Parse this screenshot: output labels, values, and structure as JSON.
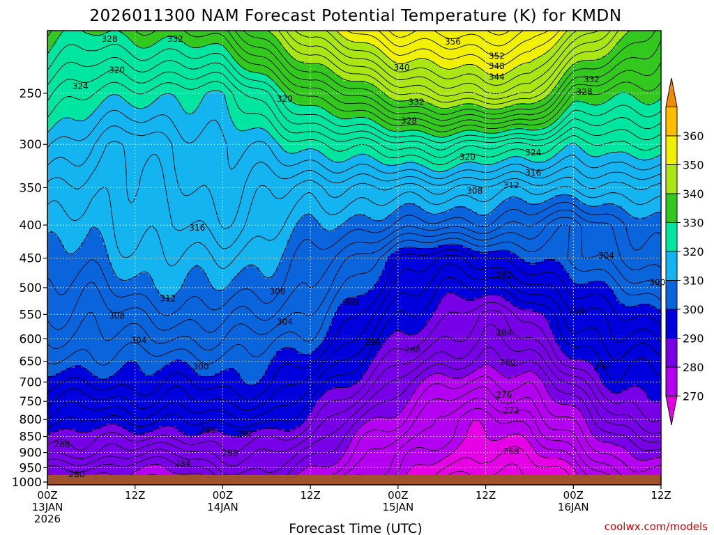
{
  "chart_data": {
    "type": "heatmap",
    "title": "2026011300 NAM Forecast Potential Temperature (K) for KMDN",
    "xlabel": "Forecast Time (UTC)",
    "ylabel": "",
    "credit": "coolwx.com/models",
    "y_ticks": [
      250,
      300,
      350,
      400,
      450,
      500,
      550,
      600,
      650,
      700,
      750,
      800,
      850,
      900,
      950,
      1000
    ],
    "y_range": [
      1010,
      200
    ],
    "y_scale": "log",
    "x_range_hours": [
      0,
      84
    ],
    "x_ticks": [
      {
        "hours": 0,
        "lines": [
          "00Z",
          "13JAN",
          "2026"
        ]
      },
      {
        "hours": 12,
        "lines": [
          "12Z"
        ]
      },
      {
        "hours": 24,
        "lines": [
          "00Z",
          "14JAN"
        ]
      },
      {
        "hours": 36,
        "lines": [
          "12Z"
        ]
      },
      {
        "hours": 48,
        "lines": [
          "00Z",
          "15JAN"
        ]
      },
      {
        "hours": 60,
        "lines": [
          "12Z"
        ]
      },
      {
        "hours": 72,
        "lines": [
          "00Z",
          "16JAN"
        ]
      },
      {
        "hours": 84,
        "lines": [
          "12Z"
        ]
      }
    ],
    "grid": true,
    "ground_pressure": 975,
    "colorbar": {
      "labels": [
        270,
        280,
        290,
        300,
        310,
        320,
        330,
        340,
        350,
        360
      ],
      "bins": [
        {
          "min": 260,
          "max": 270,
          "color": "#e600e6"
        },
        {
          "min": 270,
          "max": 280,
          "color": "#b400f0"
        },
        {
          "min": 280,
          "max": 290,
          "color": "#7800e6"
        },
        {
          "min": 290,
          "max": 300,
          "color": "#0000dc"
        },
        {
          "min": 300,
          "max": 310,
          "color": "#0a64dc"
        },
        {
          "min": 310,
          "max": 320,
          "color": "#14b4f0"
        },
        {
          "min": 320,
          "max": 330,
          "color": "#00e6a0"
        },
        {
          "min": 330,
          "max": 340,
          "color": "#32c81e"
        },
        {
          "min": 340,
          "max": 350,
          "color": "#aae614"
        },
        {
          "min": 350,
          "max": 360,
          "color": "#f0f000"
        },
        {
          "min": 360,
          "max": 370,
          "color": "#ffbe00"
        },
        {
          "min": 370,
          "max": 380,
          "color": "#f08c00"
        }
      ]
    },
    "contour_interval": 2,
    "ground_color": "#a0522d",
    "grid_columns_hours": [
      0,
      6,
      12,
      18,
      24,
      30,
      36,
      42,
      48,
      54,
      60,
      66,
      72,
      78,
      84
    ],
    "grid_rows_pressure": [
      200,
      250,
      300,
      350,
      400,
      450,
      500,
      550,
      600,
      650,
      700,
      750,
      800,
      850,
      900,
      950,
      1000
    ],
    "theta_grid": [
      [
        332,
        330,
        331,
        332,
        334,
        340,
        348,
        352,
        356,
        357,
        358,
        356,
        350,
        342,
        336
      ],
      [
        324,
        322,
        321,
        320,
        321,
        326,
        333,
        337,
        341,
        344,
        346,
        344,
        333,
        331,
        330
      ],
      [
        318,
        316,
        314,
        316,
        318,
        319,
        321,
        323,
        325,
        326,
        325,
        324,
        320,
        323,
        322
      ],
      [
        314,
        312,
        314,
        315,
        317,
        315,
        313,
        314,
        314,
        314,
        313,
        313,
        312,
        314,
        314
      ],
      [
        312,
        310,
        313,
        314,
        315,
        313,
        310,
        309,
        308,
        307,
        307,
        306,
        302,
        307,
        310
      ],
      [
        310,
        309,
        311,
        312,
        312,
        310,
        308,
        304,
        298,
        296,
        297,
        300,
        303,
        305,
        308
      ],
      [
        308,
        307,
        309,
        310,
        310,
        308,
        306,
        302,
        295,
        292,
        292,
        294,
        299,
        301,
        304
      ],
      [
        306,
        305,
        306,
        307,
        307,
        306,
        303,
        299,
        292,
        289,
        286,
        288,
        295,
        298,
        299
      ],
      [
        304,
        303,
        304,
        304,
        304,
        303,
        301,
        296,
        290,
        286,
        284,
        286,
        292,
        296,
        296
      ],
      [
        302,
        301,
        301,
        301,
        301,
        301,
        298,
        292,
        287,
        283,
        281,
        283,
        289,
        293,
        293
      ],
      [
        299,
        298,
        299,
        298,
        299,
        299,
        295,
        289,
        283,
        279,
        277,
        279,
        285,
        291,
        291
      ],
      [
        296,
        295,
        296,
        295,
        297,
        296,
        292,
        286,
        280,
        276,
        274,
        276,
        282,
        288,
        289
      ],
      [
        293,
        292,
        293,
        291,
        294,
        293,
        289,
        283,
        278,
        273,
        271,
        273,
        279,
        286,
        287
      ],
      [
        289,
        288,
        289,
        288,
        290,
        289,
        286,
        280,
        276,
        272,
        270,
        271,
        276,
        283,
        285
      ],
      [
        287,
        286,
        285,
        284,
        287,
        287,
        283,
        278,
        274,
        270,
        268,
        269,
        273,
        280,
        282
      ],
      [
        283,
        282,
        280,
        281,
        284,
        285,
        281,
        276,
        273,
        268,
        266,
        267,
        270,
        277,
        279
      ],
      [
        280,
        279,
        277,
        278,
        281,
        282,
        279,
        273,
        271,
        266,
        264,
        265,
        268,
        274,
        276
      ]
    ],
    "contour_labels": [
      {
        "text": "328",
        "hours": 8.5,
        "pressure": 206
      },
      {
        "text": "332",
        "hours": 17.5,
        "pressure": 206
      },
      {
        "text": "356",
        "hours": 55.5,
        "pressure": 208
      },
      {
        "text": "352",
        "hours": 61.5,
        "pressure": 219
      },
      {
        "text": "348",
        "hours": 61.5,
        "pressure": 227
      },
      {
        "text": "344",
        "hours": 61.5,
        "pressure": 236
      },
      {
        "text": "340",
        "hours": 48.5,
        "pressure": 228
      },
      {
        "text": "320",
        "hours": 9.5,
        "pressure": 230
      },
      {
        "text": "324",
        "hours": 4.5,
        "pressure": 244
      },
      {
        "text": "320",
        "hours": 32.5,
        "pressure": 255
      },
      {
        "text": "332",
        "hours": 50.5,
        "pressure": 258
      },
      {
        "text": "332",
        "hours": 74.5,
        "pressure": 238
      },
      {
        "text": "328",
        "hours": 73.5,
        "pressure": 249
      },
      {
        "text": "328",
        "hours": 49.5,
        "pressure": 276
      },
      {
        "text": "320",
        "hours": 57.5,
        "pressure": 314
      },
      {
        "text": "324",
        "hours": 66.5,
        "pressure": 309
      },
      {
        "text": "316",
        "hours": 66.5,
        "pressure": 332
      },
      {
        "text": "312",
        "hours": 63.5,
        "pressure": 347
      },
      {
        "text": "308",
        "hours": 58.5,
        "pressure": 354
      },
      {
        "text": "316",
        "hours": 20.5,
        "pressure": 404
      },
      {
        "text": "304",
        "hours": 76.5,
        "pressure": 446
      },
      {
        "text": "292",
        "hours": 62.5,
        "pressure": 478
      },
      {
        "text": "300",
        "hours": 83.5,
        "pressure": 491
      },
      {
        "text": "312",
        "hours": 16.5,
        "pressure": 520
      },
      {
        "text": "308",
        "hours": 31.5,
        "pressure": 507
      },
      {
        "text": "300",
        "hours": 41.5,
        "pressure": 527
      },
      {
        "text": "296",
        "hours": 72.5,
        "pressure": 542
      },
      {
        "text": "308",
        "hours": 9.5,
        "pressure": 553
      },
      {
        "text": "304",
        "hours": 32.5,
        "pressure": 565
      },
      {
        "text": "284",
        "hours": 62.5,
        "pressure": 587
      },
      {
        "text": "304",
        "hours": 12.5,
        "pressure": 603
      },
      {
        "text": "296",
        "hours": 44.5,
        "pressure": 607
      },
      {
        "text": "288",
        "hours": 50.0,
        "pressure": 624
      },
      {
        "text": "280",
        "hours": 63.0,
        "pressure": 652
      },
      {
        "text": "300",
        "hours": 21.0,
        "pressure": 663
      },
      {
        "text": "292",
        "hours": 76.0,
        "pressure": 662
      },
      {
        "text": "276",
        "hours": 62.5,
        "pressure": 733
      },
      {
        "text": "272",
        "hours": 63.5,
        "pressure": 775
      },
      {
        "text": "296",
        "hours": 22.0,
        "pressure": 831
      },
      {
        "text": "292",
        "hours": 27.0,
        "pressure": 841
      },
      {
        "text": "288",
        "hours": 2.0,
        "pressure": 875
      },
      {
        "text": "288",
        "hours": 25.0,
        "pressure": 902
      },
      {
        "text": "268",
        "hours": 63.5,
        "pressure": 896
      },
      {
        "text": "284",
        "hours": 18.5,
        "pressure": 936
      },
      {
        "text": "280",
        "hours": 4.0,
        "pressure": 973
      }
    ]
  }
}
